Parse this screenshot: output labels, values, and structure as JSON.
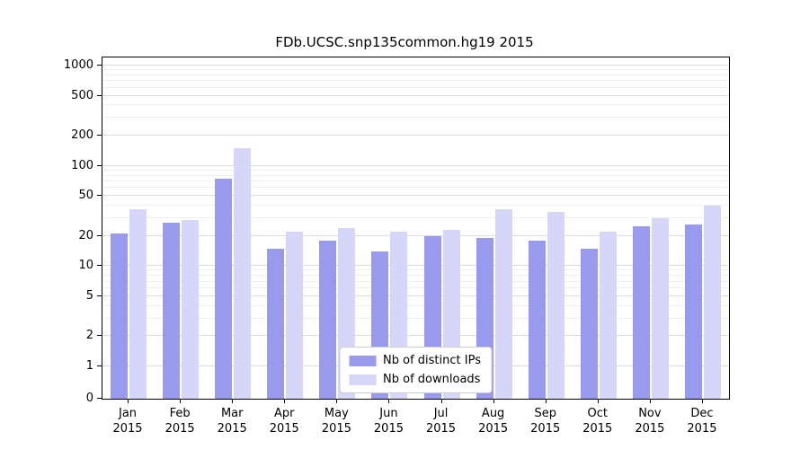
{
  "chart_data": {
    "type": "bar",
    "title": "FDb.UCSC.snp135common.hg19 2015",
    "categories": [
      "Jan",
      "Feb",
      "Mar",
      "Apr",
      "May",
      "Jun",
      "Jul",
      "Aug",
      "Sep",
      "Oct",
      "Nov",
      "Dec"
    ],
    "category_year": "2015",
    "series": [
      {
        "name": "Nb of distinct IPs",
        "color": "#9999ee",
        "values": [
          21,
          27,
          75,
          15,
          18,
          14,
          20,
          19,
          18,
          15,
          25,
          26
        ]
      },
      {
        "name": "Nb of downloads",
        "color": "#d6d6f8",
        "values": [
          37,
          29,
          150,
          22,
          24,
          22,
          23,
          37,
          35,
          22,
          30,
          40
        ]
      }
    ],
    "yticks": [
      0,
      1,
      2,
      5,
      10,
      20,
      50,
      100,
      200,
      500,
      1000
    ],
    "ylim": [
      0,
      1000
    ],
    "scale": "symlog",
    "xlabel": "",
    "ylabel": "",
    "grid": true,
    "legend_position": "lower-center-inside"
  }
}
